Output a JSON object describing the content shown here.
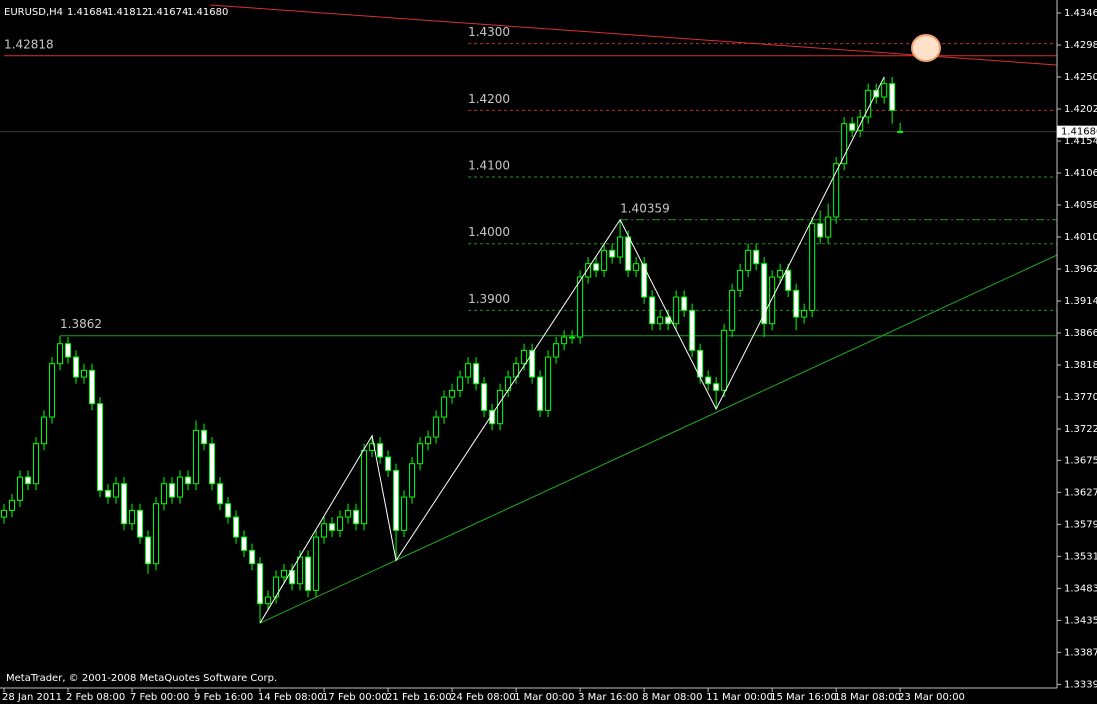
{
  "chart_data": {
    "type": "candlestick",
    "symbol": "EURUSD,H4",
    "header_ohlc": [
      "1.41684",
      "1.41812",
      "1.41674",
      "1.41680"
    ],
    "price_label": "1.41680",
    "watermark": "MetaTrader, © 2001-2008 MetaQuotes Software Corp.",
    "candle_color": "#00ff00",
    "bull_fill": "#000000",
    "bear_fill": "#ffffff",
    "open": [
      1.359,
      1.36,
      1.3615,
      1.365,
      1.364,
      1.37,
      1.374,
      1.382,
      1.385,
      1.383,
      1.38,
      1.381,
      1.376,
      1.363,
      1.362,
      1.364,
      1.358,
      1.36,
      1.356,
      1.352,
      1.361,
      1.364,
      1.362,
      1.365,
      1.364,
      1.372,
      1.37,
      1.364,
      1.361,
      1.359,
      1.356,
      1.354,
      1.352,
      1.346,
      1.347,
      1.35,
      1.351,
      1.349,
      1.353,
      1.348,
      1.356,
      1.358,
      1.357,
      1.359,
      1.36,
      1.358,
      1.369,
      1.37,
      1.368,
      1.366,
      1.357,
      1.362,
      1.367,
      1.37,
      1.371,
      1.374,
      1.377,
      1.378,
      1.38,
      1.382,
      1.379,
      1.375,
      1.373,
      1.378,
      1.38,
      1.382,
      1.384,
      1.38,
      1.375,
      1.383,
      1.385,
      1.386,
      1.386,
      1.395,
      1.397,
      1.396,
      1.399,
      1.398,
      1.401,
      1.396,
      1.397,
      1.392,
      1.388,
      1.389,
      1.388,
      1.392,
      1.39,
      1.384,
      1.38,
      1.379,
      1.378,
      1.387,
      1.393,
      1.396,
      1.399,
      1.397,
      1.388,
      1.395,
      1.396,
      1.393,
      1.389,
      1.39,
      1.403,
      1.401,
      1.404,
      1.412,
      1.418,
      1.417,
      1.419,
      1.423,
      1.422,
      1.424,
      1.41684
    ],
    "high": [
      1.361,
      1.3625,
      1.366,
      1.366,
      1.371,
      1.375,
      1.383,
      1.3862,
      1.386,
      1.384,
      1.382,
      1.382,
      1.377,
      1.364,
      1.365,
      1.365,
      1.361,
      1.361,
      1.357,
      1.362,
      1.365,
      1.365,
      1.366,
      1.366,
      1.3735,
      1.373,
      1.371,
      1.365,
      1.362,
      1.36,
      1.357,
      1.355,
      1.353,
      1.348,
      1.351,
      1.352,
      1.352,
      1.354,
      1.354,
      1.357,
      1.359,
      1.359,
      1.36,
      1.361,
      1.361,
      1.37,
      1.3712,
      1.371,
      1.369,
      1.367,
      1.363,
      1.368,
      1.371,
      1.372,
      1.375,
      1.378,
      1.379,
      1.381,
      1.383,
      1.383,
      1.38,
      1.376,
      1.379,
      1.381,
      1.383,
      1.385,
      1.385,
      1.381,
      1.384,
      1.386,
      1.387,
      1.387,
      1.396,
      1.398,
      1.398,
      1.4,
      1.4,
      1.40359,
      1.402,
      1.398,
      1.398,
      1.393,
      1.39,
      1.39,
      1.393,
      1.393,
      1.391,
      1.385,
      1.381,
      1.38,
      1.388,
      1.394,
      1.397,
      1.4,
      1.4,
      1.398,
      1.396,
      1.397,
      1.397,
      1.394,
      1.391,
      1.404,
      1.405,
      1.406,
      1.413,
      1.419,
      1.419,
      1.42,
      1.424,
      1.424,
      1.425,
      1.425,
      1.41812
    ],
    "low": [
      1.358,
      1.359,
      1.3605,
      1.363,
      1.363,
      1.369,
      1.373,
      1.381,
      1.382,
      1.379,
      1.379,
      1.375,
      1.362,
      1.361,
      1.361,
      1.357,
      1.357,
      1.355,
      1.3505,
      1.351,
      1.36,
      1.361,
      1.361,
      1.363,
      1.363,
      1.369,
      1.363,
      1.36,
      1.358,
      1.355,
      1.353,
      1.351,
      1.3431,
      1.345,
      1.346,
      1.349,
      1.348,
      1.348,
      1.347,
      1.347,
      1.355,
      1.356,
      1.356,
      1.358,
      1.357,
      1.357,
      1.368,
      1.367,
      1.365,
      1.3525,
      1.356,
      1.361,
      1.366,
      1.369,
      1.37,
      1.373,
      1.376,
      1.377,
      1.379,
      1.378,
      1.374,
      1.372,
      1.372,
      1.377,
      1.379,
      1.381,
      1.379,
      1.374,
      1.374,
      1.382,
      1.384,
      1.385,
      1.385,
      1.394,
      1.395,
      1.395,
      1.397,
      1.397,
      1.395,
      1.395,
      1.391,
      1.387,
      1.387,
      1.387,
      1.387,
      1.389,
      1.383,
      1.379,
      1.378,
      1.3752,
      1.377,
      1.386,
      1.392,
      1.395,
      1.396,
      1.386,
      1.387,
      1.394,
      1.392,
      1.387,
      1.388,
      1.389,
      1.4,
      1.4,
      1.403,
      1.411,
      1.416,
      1.416,
      1.418,
      1.421,
      1.421,
      1.418,
      1.41674
    ],
    "close": [
      1.36,
      1.3615,
      1.365,
      1.364,
      1.37,
      1.374,
      1.382,
      1.385,
      1.383,
      1.38,
      1.381,
      1.376,
      1.363,
      1.362,
      1.364,
      1.358,
      1.36,
      1.356,
      1.352,
      1.361,
      1.364,
      1.362,
      1.365,
      1.364,
      1.372,
      1.37,
      1.364,
      1.361,
      1.359,
      1.356,
      1.354,
      1.352,
      1.346,
      1.347,
      1.35,
      1.351,
      1.349,
      1.353,
      1.348,
      1.356,
      1.358,
      1.357,
      1.359,
      1.36,
      1.358,
      1.369,
      1.37,
      1.368,
      1.366,
      1.357,
      1.362,
      1.367,
      1.37,
      1.371,
      1.374,
      1.377,
      1.378,
      1.38,
      1.382,
      1.379,
      1.375,
      1.373,
      1.378,
      1.38,
      1.382,
      1.384,
      1.38,
      1.375,
      1.383,
      1.385,
      1.386,
      1.386,
      1.395,
      1.397,
      1.396,
      1.399,
      1.398,
      1.401,
      1.396,
      1.397,
      1.392,
      1.388,
      1.389,
      1.388,
      1.392,
      1.39,
      1.384,
      1.38,
      1.379,
      1.378,
      1.387,
      1.393,
      1.396,
      1.399,
      1.397,
      1.388,
      1.395,
      1.396,
      1.393,
      1.389,
      1.39,
      1.403,
      1.401,
      1.404,
      1.412,
      1.418,
      1.417,
      1.419,
      1.423,
      1.422,
      1.424,
      1.42,
      1.4168
    ],
    "xlim": [
      -0.5,
      131.6
    ],
    "xticks": [
      {
        "value": 0,
        "label": "28 Jan 2011"
      },
      {
        "value": 8,
        "label": "2 Feb 08:00"
      },
      {
        "value": 16,
        "label": "7 Feb 00:00"
      },
      {
        "value": 24,
        "label": "9 Feb 16:00"
      },
      {
        "value": 32,
        "label": "14 Feb 08:00"
      },
      {
        "value": 40,
        "label": "17 Feb 00:00"
      },
      {
        "value": 48,
        "label": "21 Feb 16:00"
      },
      {
        "value": 56,
        "label": "24 Feb 08:00"
      },
      {
        "value": 64,
        "label": "1 Mar 00:00"
      },
      {
        "value": 72,
        "label": "3 Mar 16:00"
      },
      {
        "value": 80,
        "label": "8 Mar 08:00"
      },
      {
        "value": 88,
        "label": "11 Mar 00:00"
      },
      {
        "value": 96,
        "label": "15 Mar 16:00"
      },
      {
        "value": 104,
        "label": "18 Mar 08:00"
      },
      {
        "value": 112,
        "label": "23 Mar 00:00"
      }
    ],
    "ylim": [
      1.33336,
      1.43655
    ],
    "yticks": [
      {
        "value": 1.4346,
        "label": "1.43460"
      },
      {
        "value": 1.4298,
        "label": "1.42980"
      },
      {
        "value": 1.425,
        "label": "1.42500"
      },
      {
        "value": 1.4202,
        "label": "1.42020"
      },
      {
        "value": 1.4154,
        "label": "1.41540"
      },
      {
        "value": 1.4106,
        "label": "1.41060"
      },
      {
        "value": 1.4058,
        "label": "1.40580"
      },
      {
        "value": 1.401,
        "label": "1.40100"
      },
      {
        "value": 1.3962,
        "label": "1.39620"
      },
      {
        "value": 1.3914,
        "label": "1.39140"
      },
      {
        "value": 1.3866,
        "label": "1.38660"
      },
      {
        "value": 1.3818,
        "label": "1.38180"
      },
      {
        "value": 1.377,
        "label": "1.37700"
      },
      {
        "value": 1.3722,
        "label": "1.37220"
      },
      {
        "value": 1.3675,
        "label": "1.36750"
      },
      {
        "value": 1.3627,
        "label": "1.36270"
      },
      {
        "value": 1.3579,
        "label": "1.35790"
      },
      {
        "value": 1.3531,
        "label": "1.35310"
      },
      {
        "value": 1.3483,
        "label": "1.34830"
      },
      {
        "value": 1.3435,
        "label": "1.34350"
      },
      {
        "value": 1.3387,
        "label": "1.33870"
      },
      {
        "value": 1.3339,
        "label": "1.33390"
      }
    ],
    "levels": [
      {
        "price": {
          "value": 1.43,
          "label": "1.4300"
        },
        "from": 58,
        "color": "#c03030",
        "style": "dashed"
      },
      {
        "price": {
          "value": 1.42,
          "label": "1.4200"
        },
        "from": 58,
        "color": "#c03030",
        "style": "dashed"
      },
      {
        "price": {
          "value": 1.41,
          "label": "1.4100"
        },
        "from": 58,
        "color": "#1f9a1f",
        "style": "dashed"
      },
      {
        "price": {
          "value": 1.4,
          "label": "1.4000"
        },
        "from": 58,
        "color": "#1f9a1f",
        "style": "dashed"
      },
      {
        "price": {
          "value": 1.39,
          "label": "1.3900"
        },
        "from": 58,
        "color": "#1f9a1f",
        "style": "dashed"
      },
      {
        "price": 1.40359,
        "from": 77,
        "color": "#1f9a1f",
        "style": "dashdot"
      },
      {
        "price": 1.3862,
        "from": 7,
        "color": "#1f9a1f",
        "style": "solid"
      },
      {
        "price": 1.42818,
        "from": 0,
        "color": "#d83030",
        "style": "solid"
      }
    ],
    "trendlines": [
      {
        "x": [
          25.75,
          131.6
        ],
        "y": [
          1.4358,
          1.4268
        ],
        "color": "#d83030"
      },
      {
        "x": [
          32,
          131.6
        ],
        "y": [
          1.3431,
          1.3983
        ],
        "color": "#1fae1f"
      },
      {
        "x": [
          32,
          46,
          49,
          77,
          89,
          110
        ],
        "y": [
          1.3431,
          1.3712,
          1.3525,
          1.40359,
          1.3752,
          1.425
        ],
        "color": "#ffffff"
      }
    ]
  }
}
